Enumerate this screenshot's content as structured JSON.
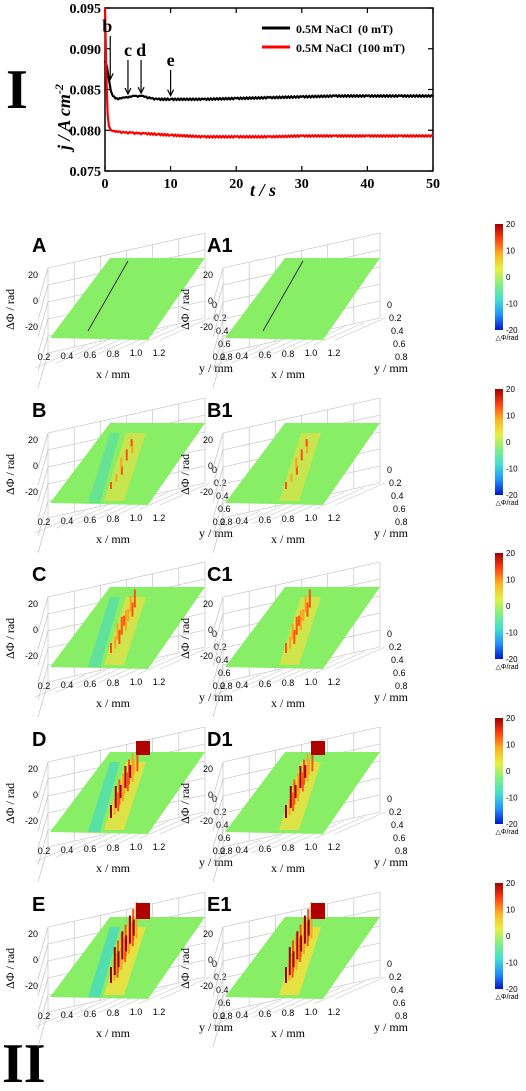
{
  "panel_labels": {
    "part_one": "I",
    "part_two": "II"
  },
  "chart_data": [
    {
      "type": "line",
      "xlabel": "t / s",
      "ylabel": "j / A cm-2",
      "ylabel_main": "j / A cm",
      "ylabel_sup": "-2",
      "xlim": [
        0,
        50
      ],
      "ylim": [
        0.075,
        0.095
      ],
      "x_ticks": [
        0,
        10,
        20,
        30,
        40,
        50
      ],
      "y_ticks": [
        0.075,
        0.08,
        0.085,
        0.09,
        0.095
      ],
      "y_tick_labels": [
        "0.075",
        "0.080",
        "0.085",
        "0.090",
        "0.095"
      ],
      "legend_position": "top-right",
      "series": [
        {
          "name": "0.5M NaCl  (0 mT)",
          "color": "#000000",
          "x": [
            0,
            0.3,
            0.6,
            0.9,
            1.2,
            1.6,
            2.0,
            2.5,
            3.0,
            3.5,
            4.0,
            4.5,
            5.0,
            5.5,
            6.0,
            7.0,
            8.0,
            10,
            15,
            20,
            25,
            30,
            35,
            40,
            45,
            50
          ],
          "y": [
            0.0885,
            0.0878,
            0.0862,
            0.0848,
            0.0842,
            0.0839,
            0.0838,
            0.0839,
            0.084,
            0.084,
            0.0841,
            0.0842,
            0.0841,
            0.0842,
            0.0841,
            0.0839,
            0.0838,
            0.0838,
            0.0838,
            0.0839,
            0.084,
            0.0841,
            0.0842,
            0.0842,
            0.0842,
            0.0842
          ]
        },
        {
          "name": "0.5M NaCl  (100 mT)",
          "color": "#ff0000",
          "x": [
            0,
            0.2,
            0.4,
            0.6,
            0.9,
            1.2,
            1.6,
            2.0,
            3.0,
            4.0,
            5.0,
            6.0,
            8.0,
            10,
            15,
            20,
            25,
            30,
            35,
            40,
            45,
            50
          ],
          "y": [
            0.095,
            0.087,
            0.082,
            0.0805,
            0.08,
            0.0799,
            0.0798,
            0.0798,
            0.0797,
            0.0797,
            0.0796,
            0.0796,
            0.0795,
            0.0794,
            0.0792,
            0.0792,
            0.0792,
            0.0793,
            0.0793,
            0.0793,
            0.0793,
            0.0793
          ]
        }
      ],
      "annotations": [
        {
          "label": "b",
          "x": 0.8,
          "arrow_to_y": 0.086
        },
        {
          "label": "c",
          "x": 3.5,
          "arrow_to_y": 0.0842
        },
        {
          "label": "d",
          "x": 5.5,
          "arrow_to_y": 0.0843
        },
        {
          "label": "e",
          "x": 10,
          "arrow_to_y": 0.084
        }
      ]
    },
    {
      "type": "heatmap",
      "surfaces": [
        {
          "label": "A",
          "stage": 0,
          "field": "0 mT"
        },
        {
          "label": "A1",
          "stage": 0,
          "field": "100 mT"
        },
        {
          "label": "B",
          "stage": 1,
          "field": "0 mT"
        },
        {
          "label": "B1",
          "stage": 1,
          "field": "100 mT"
        },
        {
          "label": "C",
          "stage": 2,
          "field": "0 mT"
        },
        {
          "label": "C1",
          "stage": 2,
          "field": "100 mT"
        },
        {
          "label": "D",
          "stage": 3,
          "field": "0 mT"
        },
        {
          "label": "D1",
          "stage": 3,
          "field": "100 mT"
        },
        {
          "label": "E",
          "stage": 4,
          "field": "0 mT"
        },
        {
          "label": "E1",
          "stage": 4,
          "field": "100 mT"
        }
      ],
      "zlabel": "ΔΦ / rad",
      "xlabel": "x / mm",
      "ylabel": "y / mm",
      "z_ticks": [
        "20",
        "10",
        "0",
        "-10",
        "-20"
      ],
      "x_ticks": [
        "0.2",
        "0.4",
        "0.6",
        "0.8",
        "1.0",
        "1.2"
      ],
      "y_ticks": [
        "0",
        "0.2",
        "0.4",
        "0.6",
        "0.8"
      ],
      "zlim": [
        -20,
        20
      ],
      "colorbar": {
        "ticks": [
          "20",
          "10",
          "0",
          "-10",
          "-20"
        ],
        "label": "△Φ/rad",
        "colors": [
          "#0018c8",
          "#2090ff",
          "#40e0d0",
          "#80f080",
          "#e8f040",
          "#ffb020",
          "#ff4010",
          "#a00000"
        ]
      },
      "surface_base_color": "#88ee66"
    }
  ]
}
